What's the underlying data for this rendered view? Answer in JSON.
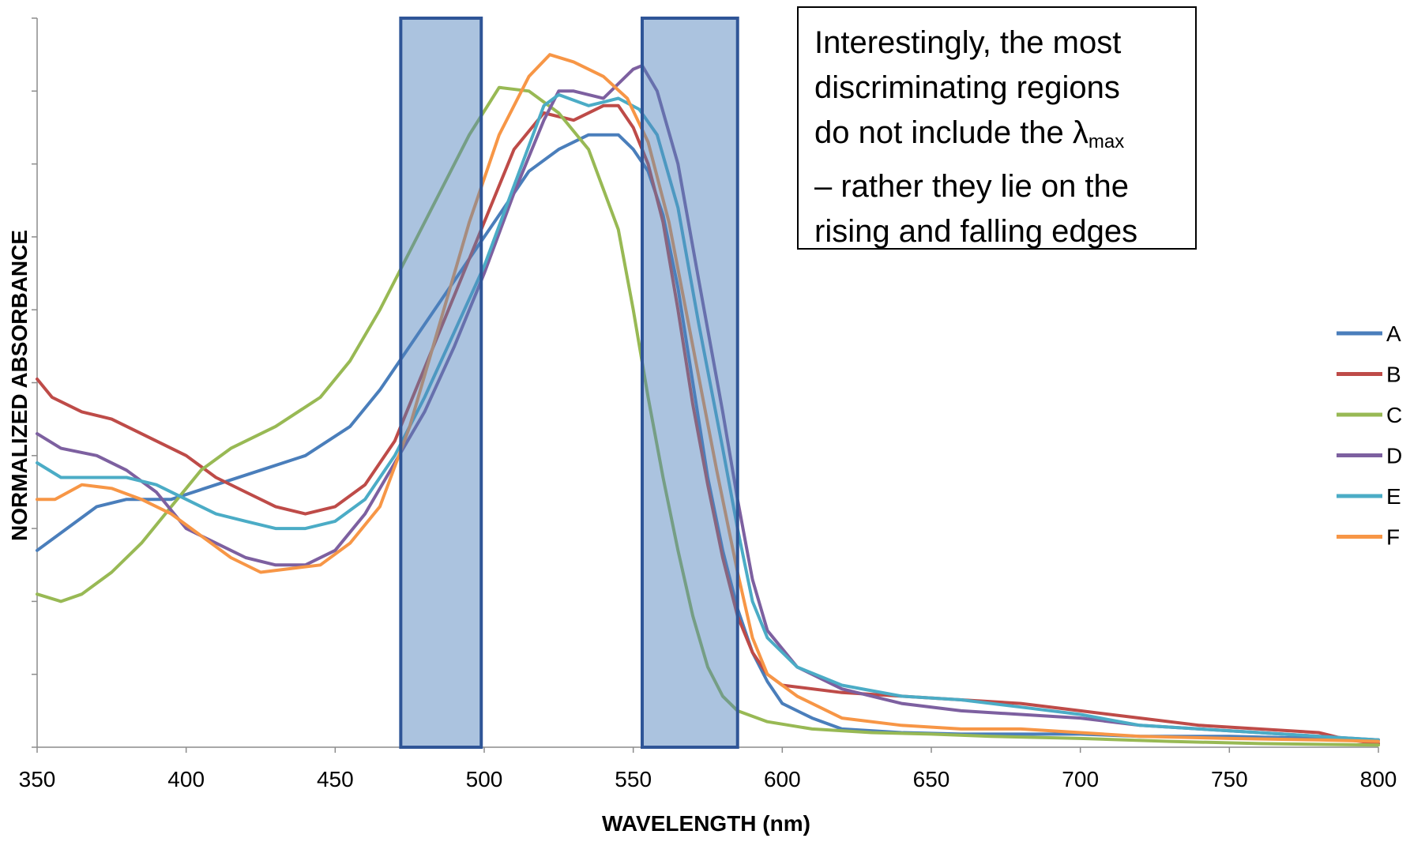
{
  "chart_data": {
    "type": "line",
    "xlabel": "WAVELENGTH (nm)",
    "ylabel": "NORMALIZED ABSORBANCE",
    "xlim": [
      350,
      800
    ],
    "ylim": [
      0,
      1
    ],
    "x_ticks": [
      "350",
      "400",
      "450",
      "500",
      "550",
      "600",
      "650",
      "700",
      "750",
      "800"
    ],
    "y_tick_count": 10,
    "legend_position": "right",
    "highlight_bands": [
      {
        "x_start": 472,
        "x_end": 499
      },
      {
        "x_start": 553,
        "x_end": 585
      }
    ],
    "annotation": {
      "line1": "Interestingly, the most",
      "line2": "discriminating regions",
      "line3_prefix": "do not include the ",
      "line3_symbol": "λ",
      "line3_subscript": "max",
      "line4": "– rather they lie on the",
      "line5": "rising and falling edges"
    },
    "series": [
      {
        "name": "A",
        "color": "#4A7EBB",
        "points": [
          [
            350,
            0.27
          ],
          [
            360,
            0.3
          ],
          [
            370,
            0.33
          ],
          [
            380,
            0.34
          ],
          [
            395,
            0.34
          ],
          [
            410,
            0.36
          ],
          [
            425,
            0.38
          ],
          [
            440,
            0.4
          ],
          [
            455,
            0.44
          ],
          [
            465,
            0.49
          ],
          [
            475,
            0.55
          ],
          [
            485,
            0.61
          ],
          [
            495,
            0.67
          ],
          [
            505,
            0.73
          ],
          [
            515,
            0.79
          ],
          [
            525,
            0.82
          ],
          [
            535,
            0.84
          ],
          [
            545,
            0.84
          ],
          [
            550,
            0.82
          ],
          [
            555,
            0.79
          ],
          [
            560,
            0.73
          ],
          [
            565,
            0.63
          ],
          [
            570,
            0.5
          ],
          [
            575,
            0.37
          ],
          [
            580,
            0.27
          ],
          [
            585,
            0.19
          ],
          [
            590,
            0.13
          ],
          [
            595,
            0.09
          ],
          [
            600,
            0.06
          ],
          [
            610,
            0.04
          ],
          [
            620,
            0.025
          ],
          [
            640,
            0.02
          ],
          [
            660,
            0.018
          ],
          [
            680,
            0.018
          ],
          [
            700,
            0.018
          ],
          [
            720,
            0.015
          ],
          [
            750,
            0.015
          ],
          [
            780,
            0.012
          ],
          [
            795,
            0.01
          ],
          [
            800,
            0.01
          ]
        ]
      },
      {
        "name": "B",
        "color": "#BE4B48",
        "points": [
          [
            350,
            0.505
          ],
          [
            355,
            0.48
          ],
          [
            365,
            0.46
          ],
          [
            375,
            0.45
          ],
          [
            385,
            0.43
          ],
          [
            400,
            0.4
          ],
          [
            410,
            0.37
          ],
          [
            420,
            0.35
          ],
          [
            430,
            0.33
          ],
          [
            440,
            0.32
          ],
          [
            450,
            0.33
          ],
          [
            460,
            0.36
          ],
          [
            470,
            0.42
          ],
          [
            480,
            0.52
          ],
          [
            490,
            0.62
          ],
          [
            500,
            0.72
          ],
          [
            510,
            0.82
          ],
          [
            520,
            0.87
          ],
          [
            530,
            0.86
          ],
          [
            540,
            0.88
          ],
          [
            545,
            0.88
          ],
          [
            550,
            0.85
          ],
          [
            555,
            0.8
          ],
          [
            560,
            0.72
          ],
          [
            565,
            0.6
          ],
          [
            570,
            0.47
          ],
          [
            575,
            0.36
          ],
          [
            580,
            0.26
          ],
          [
            585,
            0.18
          ],
          [
            590,
            0.13
          ],
          [
            595,
            0.1
          ],
          [
            600,
            0.085
          ],
          [
            620,
            0.075
          ],
          [
            640,
            0.07
          ],
          [
            660,
            0.065
          ],
          [
            680,
            0.06
          ],
          [
            700,
            0.05
          ],
          [
            720,
            0.04
          ],
          [
            740,
            0.03
          ],
          [
            760,
            0.025
          ],
          [
            780,
            0.02
          ],
          [
            790,
            0.01
          ],
          [
            800,
            0.005
          ]
        ]
      },
      {
        "name": "C",
        "color": "#98B954",
        "points": [
          [
            350,
            0.21
          ],
          [
            358,
            0.2
          ],
          [
            365,
            0.21
          ],
          [
            375,
            0.24
          ],
          [
            385,
            0.28
          ],
          [
            395,
            0.33
          ],
          [
            405,
            0.38
          ],
          [
            415,
            0.41
          ],
          [
            430,
            0.44
          ],
          [
            445,
            0.48
          ],
          [
            455,
            0.53
          ],
          [
            465,
            0.6
          ],
          [
            475,
            0.68
          ],
          [
            485,
            0.76
          ],
          [
            495,
            0.84
          ],
          [
            505,
            0.905
          ],
          [
            515,
            0.9
          ],
          [
            525,
            0.87
          ],
          [
            535,
            0.82
          ],
          [
            545,
            0.71
          ],
          [
            550,
            0.6
          ],
          [
            555,
            0.48
          ],
          [
            560,
            0.37
          ],
          [
            565,
            0.27
          ],
          [
            570,
            0.18
          ],
          [
            575,
            0.11
          ],
          [
            580,
            0.07
          ],
          [
            585,
            0.05
          ],
          [
            595,
            0.035
          ],
          [
            610,
            0.025
          ],
          [
            630,
            0.02
          ],
          [
            650,
            0.018
          ],
          [
            670,
            0.015
          ],
          [
            700,
            0.012
          ],
          [
            730,
            0.008
          ],
          [
            760,
            0.005
          ],
          [
            800,
            0.003
          ]
        ]
      },
      {
        "name": "D",
        "color": "#7D60A0",
        "points": [
          [
            350,
            0.43
          ],
          [
            358,
            0.41
          ],
          [
            370,
            0.4
          ],
          [
            380,
            0.38
          ],
          [
            390,
            0.35
          ],
          [
            400,
            0.3
          ],
          [
            410,
            0.28
          ],
          [
            420,
            0.26
          ],
          [
            430,
            0.25
          ],
          [
            440,
            0.25
          ],
          [
            450,
            0.27
          ],
          [
            460,
            0.32
          ],
          [
            470,
            0.39
          ],
          [
            480,
            0.46
          ],
          [
            490,
            0.55
          ],
          [
            500,
            0.65
          ],
          [
            510,
            0.76
          ],
          [
            520,
            0.86
          ],
          [
            525,
            0.9
          ],
          [
            530,
            0.9
          ],
          [
            540,
            0.89
          ],
          [
            550,
            0.93
          ],
          [
            553,
            0.935
          ],
          [
            558,
            0.9
          ],
          [
            565,
            0.8
          ],
          [
            572,
            0.64
          ],
          [
            580,
            0.46
          ],
          [
            585,
            0.34
          ],
          [
            590,
            0.23
          ],
          [
            595,
            0.16
          ],
          [
            605,
            0.11
          ],
          [
            620,
            0.08
          ],
          [
            640,
            0.06
          ],
          [
            660,
            0.05
          ],
          [
            680,
            0.045
          ],
          [
            700,
            0.04
          ],
          [
            720,
            0.03
          ],
          [
            740,
            0.025
          ],
          [
            760,
            0.02
          ],
          [
            780,
            0.015
          ],
          [
            800,
            0.01
          ]
        ]
      },
      {
        "name": "E",
        "color": "#4BACC6",
        "points": [
          [
            350,
            0.39
          ],
          [
            358,
            0.37
          ],
          [
            370,
            0.37
          ],
          [
            380,
            0.37
          ],
          [
            390,
            0.36
          ],
          [
            400,
            0.34
          ],
          [
            410,
            0.32
          ],
          [
            420,
            0.31
          ],
          [
            430,
            0.3
          ],
          [
            440,
            0.3
          ],
          [
            450,
            0.31
          ],
          [
            460,
            0.34
          ],
          [
            470,
            0.4
          ],
          [
            480,
            0.48
          ],
          [
            490,
            0.57
          ],
          [
            500,
            0.66
          ],
          [
            510,
            0.77
          ],
          [
            520,
            0.88
          ],
          [
            525,
            0.895
          ],
          [
            535,
            0.88
          ],
          [
            545,
            0.89
          ],
          [
            552,
            0.875
          ],
          [
            558,
            0.84
          ],
          [
            565,
            0.74
          ],
          [
            572,
            0.58
          ],
          [
            580,
            0.41
          ],
          [
            585,
            0.3
          ],
          [
            590,
            0.2
          ],
          [
            595,
            0.15
          ],
          [
            605,
            0.11
          ],
          [
            620,
            0.085
          ],
          [
            640,
            0.07
          ],
          [
            660,
            0.065
          ],
          [
            680,
            0.055
          ],
          [
            700,
            0.045
          ],
          [
            720,
            0.03
          ],
          [
            740,
            0.025
          ],
          [
            760,
            0.02
          ],
          [
            780,
            0.015
          ],
          [
            800,
            0.01
          ]
        ]
      },
      {
        "name": "F",
        "color": "#F79646",
        "points": [
          [
            350,
            0.34
          ],
          [
            356,
            0.34
          ],
          [
            365,
            0.36
          ],
          [
            375,
            0.355
          ],
          [
            385,
            0.34
          ],
          [
            395,
            0.32
          ],
          [
            405,
            0.29
          ],
          [
            415,
            0.26
          ],
          [
            425,
            0.24
          ],
          [
            435,
            0.245
          ],
          [
            445,
            0.25
          ],
          [
            455,
            0.28
          ],
          [
            465,
            0.33
          ],
          [
            475,
            0.44
          ],
          [
            485,
            0.58
          ],
          [
            495,
            0.72
          ],
          [
            505,
            0.84
          ],
          [
            515,
            0.92
          ],
          [
            522,
            0.95
          ],
          [
            530,
            0.94
          ],
          [
            540,
            0.92
          ],
          [
            548,
            0.89
          ],
          [
            555,
            0.83
          ],
          [
            562,
            0.72
          ],
          [
            570,
            0.55
          ],
          [
            578,
            0.38
          ],
          [
            585,
            0.24
          ],
          [
            590,
            0.15
          ],
          [
            595,
            0.1
          ],
          [
            605,
            0.07
          ],
          [
            620,
            0.04
          ],
          [
            640,
            0.03
          ],
          [
            660,
            0.025
          ],
          [
            680,
            0.025
          ],
          [
            700,
            0.02
          ],
          [
            720,
            0.015
          ],
          [
            750,
            0.012
          ],
          [
            780,
            0.01
          ],
          [
            800,
            0.008
          ]
        ]
      }
    ]
  }
}
